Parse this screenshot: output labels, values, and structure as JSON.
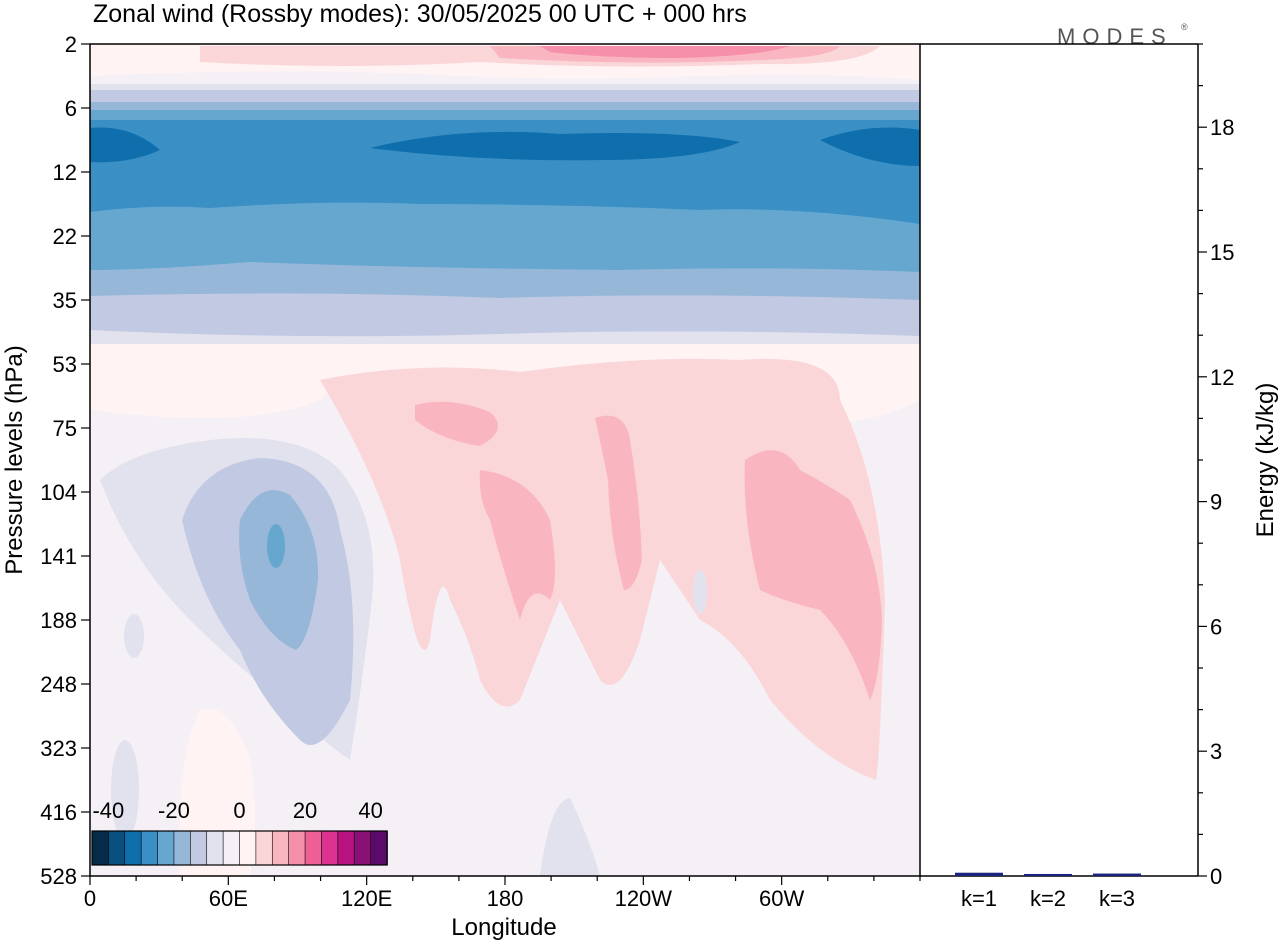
{
  "title": "Zonal wind (Rossby modes):  30/05/2025  00 UTC  + 000 hrs",
  "brand": {
    "text": "MODES",
    "mark": "®"
  },
  "chart_data": [
    {
      "type": "heatmap",
      "field": "zonal wind",
      "xlabel": "Longitude",
      "ylabel": "Pressure levels (hPa)",
      "xlim": [
        0,
        360
      ],
      "x_tick_values": [
        0,
        60,
        120,
        180,
        240,
        300
      ],
      "x_ticks": [
        "0",
        "60E",
        "120E",
        "180",
        "120W",
        "60W"
      ],
      "y_ticks": [
        "2",
        "6",
        "12",
        "22",
        "35",
        "53",
        "75",
        "104",
        "141",
        "188",
        "248",
        "323",
        "416",
        "528"
      ],
      "y_scale": "model levels (pressure decreasing upward)",
      "colorbar": {
        "labels": [
          "-40",
          "-20",
          "0",
          "20",
          "40"
        ],
        "levels": [
          -45,
          -40,
          -35,
          -30,
          -25,
          -20,
          -15,
          -10,
          -5,
          0,
          5,
          10,
          15,
          20,
          25,
          30,
          35,
          40,
          45
        ],
        "colors": [
          "#062b48",
          "#0a4f7e",
          "#0f6fac",
          "#3a8fc4",
          "#66a7d0",
          "#97b7d8",
          "#c2c9e2",
          "#e2e2ef",
          "#f5f0f6",
          "#fff3f3",
          "#fbd6d9",
          "#f9b6c1",
          "#f68fa9",
          "#ee5f96",
          "#dc3391",
          "#b7137f",
          "#891074",
          "#5b0a6a"
        ]
      },
      "features": [
        {
          "description": "easterly band (blue)",
          "pressure_hPa": [
            5,
            35
          ],
          "longitude": [
            0,
            360
          ],
          "min_value": -30
        },
        {
          "description": "westerly band (pink)",
          "pressure_hPa": [
            2,
            4
          ],
          "longitude": [
            0,
            360
          ],
          "max_value": 20
        },
        {
          "description": "easterly cell (blue)",
          "pressure_hPa": [
            90,
            330
          ],
          "longitude": [
            0,
            120
          ],
          "min_value": -20
        },
        {
          "description": "westerly cells (pink)",
          "pressure_hPa": [
            60,
            330
          ],
          "longitude": [
            140,
            350
          ],
          "max_value": 15
        }
      ]
    },
    {
      "type": "bar",
      "categories": [
        "k=1",
        "k=2",
        "k=3"
      ],
      "values": [
        0.05,
        0.02,
        0.03
      ],
      "ylabel": "Energy (kJ/kg)",
      "ylim": [
        0,
        20
      ],
      "y_ticks": [
        "0",
        "3",
        "6",
        "9",
        "12",
        "15",
        "18"
      ],
      "bar_color": "#1a237e"
    }
  ]
}
